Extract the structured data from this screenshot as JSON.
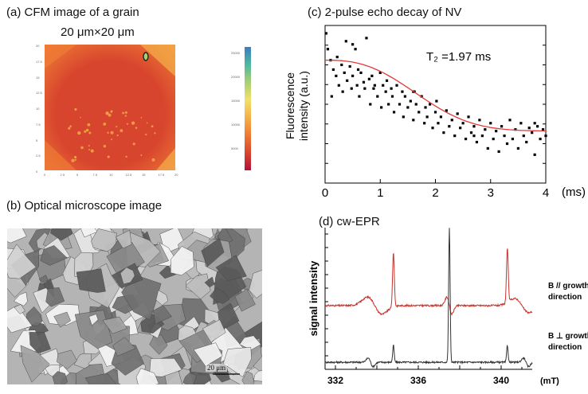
{
  "panels": {
    "a": {
      "title": "(a) CFM image of a grain",
      "subtitle": "20 μm×20 μm",
      "x_ticks": [
        "0",
        "2.5",
        "5",
        "7.5",
        "10",
        "12.5",
        "15",
        "17.5",
        "20"
      ],
      "y_ticks": [
        "20",
        "17.5",
        "15",
        "12.5",
        "10",
        "7.5",
        "5",
        "2.5",
        "0"
      ],
      "colorbar_ticks": [
        "25000",
        "20000",
        "15000",
        "10000",
        "5000"
      ],
      "colormap": [
        "#b0123a",
        "#d8452e",
        "#ee7a34",
        "#f4b04a",
        "#f2e06a",
        "#a8d070",
        "#4fb8a0",
        "#3a7cc0"
      ]
    },
    "b": {
      "title": "(b) Optical microscope image",
      "scale_bar": "20 μm"
    },
    "c": {
      "title": "(c) 2-pulse echo decay of NV",
      "annotation": "T₂ =1.97 ms",
      "ylabel_line1": "Fluorescence",
      "ylabel_line2": "intensity (a.u.)",
      "x_unit": "(ms)",
      "fit_color": "#e23a3a"
    },
    "d": {
      "title": "(d) cw-EPR",
      "ylabel": "signal intensity",
      "x_unit": "(mT)",
      "trace1_label_line1": "B // growth",
      "trace1_label_line2": "direction",
      "trace2_label_line1": "B ⊥ growth",
      "trace2_label_line2": "direction",
      "trace1_color": "#c8332b",
      "trace2_color": "#333333"
    }
  },
  "chart_data": [
    {
      "type": "scatter",
      "title": "(c) 2-pulse echo decay of NV",
      "xlabel": "(ms)",
      "ylabel": "Fluorescence intensity (a.u.)",
      "xlim": [
        0,
        4
      ],
      "ylim": [
        0,
        1
      ],
      "x_ticks": [
        0,
        1,
        2,
        3,
        4
      ],
      "fit": {
        "name": "T₂ =1.97 ms",
        "T2_ms": 1.97,
        "baseline": 0.33,
        "amplitude": 0.45,
        "stretch": 2.6
      },
      "x": [
        0.02,
        0.05,
        0.1,
        0.12,
        0.15,
        0.2,
        0.22,
        0.25,
        0.3,
        0.32,
        0.35,
        0.38,
        0.4,
        0.45,
        0.48,
        0.5,
        0.55,
        0.58,
        0.6,
        0.62,
        0.65,
        0.7,
        0.72,
        0.75,
        0.8,
        0.82,
        0.85,
        0.88,
        0.9,
        0.95,
        1.0,
        1.02,
        1.05,
        1.1,
        1.12,
        1.15,
        1.2,
        1.22,
        1.25,
        1.3,
        1.35,
        1.4,
        1.42,
        1.45,
        1.5,
        1.55,
        1.6,
        1.62,
        1.65,
        1.7,
        1.75,
        1.8,
        1.82,
        1.85,
        1.9,
        1.95,
        2.0,
        2.02,
        2.05,
        2.1,
        2.15,
        2.2,
        2.25,
        2.3,
        2.35,
        2.4,
        2.45,
        2.5,
        2.55,
        2.6,
        2.65,
        2.7,
        2.75,
        2.8,
        2.85,
        2.9,
        2.95,
        3.0,
        3.05,
        3.1,
        3.15,
        3.2,
        3.25,
        3.3,
        3.35,
        3.4,
        3.45,
        3.5,
        3.55,
        3.6,
        3.65,
        3.7,
        3.75,
        3.8,
        3.85,
        3.9,
        3.95,
        4.0,
        0.5,
        1.6,
        2.7,
        3.8
      ],
      "values": [
        0.95,
        0.85,
        0.78,
        0.55,
        0.72,
        0.68,
        0.8,
        0.62,
        0.75,
        0.58,
        0.7,
        0.9,
        0.65,
        0.74,
        0.6,
        0.68,
        0.85,
        0.62,
        0.72,
        0.55,
        0.7,
        0.64,
        0.6,
        0.92,
        0.66,
        0.5,
        0.68,
        0.6,
        0.62,
        0.55,
        0.7,
        0.48,
        0.62,
        0.58,
        0.65,
        0.5,
        0.6,
        0.55,
        0.45,
        0.62,
        0.5,
        0.58,
        0.42,
        0.55,
        0.48,
        0.52,
        0.4,
        0.58,
        0.5,
        0.45,
        0.55,
        0.38,
        0.48,
        0.42,
        0.5,
        0.35,
        0.45,
        0.52,
        0.38,
        0.42,
        0.32,
        0.46,
        0.36,
        0.4,
        0.3,
        0.44,
        0.35,
        0.38,
        0.28,
        0.42,
        0.32,
        0.36,
        0.26,
        0.4,
        0.3,
        0.34,
        0.22,
        0.38,
        0.28,
        0.33,
        0.2,
        0.36,
        0.3,
        0.25,
        0.4,
        0.28,
        0.34,
        0.22,
        0.38,
        0.3,
        0.26,
        0.35,
        0.32,
        0.18,
        0.36,
        0.28,
        0.34,
        0.3,
        0.88,
        0.58,
        0.3,
        0.38
      ]
    },
    {
      "type": "line",
      "title": "(d) cw-EPR",
      "xlabel": "(mT)",
      "ylabel": "signal intensity",
      "xlim": [
        331.5,
        341.5
      ],
      "x_ticks": [
        332,
        336,
        340
      ],
      "x_tick_labels": [
        "332",
        "336",
        "340"
      ],
      "series": [
        {
          "name": "B // growth direction",
          "offset": 0.45,
          "peaks": [
            {
              "center": 334.8,
              "height": 0.38,
              "width": 0.06
            },
            {
              "center": 337.5,
              "height": 0.06,
              "width": 0.12
            },
            {
              "center": 340.3,
              "height": 0.38,
              "width": 0.06
            },
            {
              "center": 333.9,
              "height": 0.06,
              "width": 0.35
            },
            {
              "center": 341.0,
              "height": 0.05,
              "width": 0.35
            }
          ]
        },
        {
          "name": "B ⊥ growth direction",
          "offset": 0.05,
          "peaks": [
            {
              "center": 337.5,
              "height": 0.95,
              "width": 0.05
            },
            {
              "center": 334.8,
              "height": 0.12,
              "width": 0.05
            },
            {
              "center": 340.3,
              "height": 0.12,
              "width": 0.05
            },
            {
              "center": 333.7,
              "height": 0.03,
              "width": 0.12
            },
            {
              "center": 341.2,
              "height": 0.03,
              "width": 0.12
            }
          ]
        }
      ]
    }
  ]
}
